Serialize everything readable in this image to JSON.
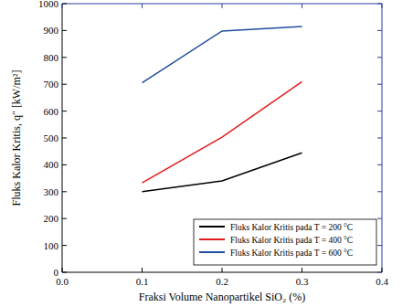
{
  "chart_data": {
    "type": "line",
    "x_label": "Fraksi Volume Nanopartikel SiO₂ (%)",
    "y_label": "Fluks Kalor Kritis, q″ [kW/m²]",
    "x": [
      0.1,
      0.2,
      0.3
    ],
    "series": [
      {
        "name": "Fluks Kalor Kritis pada T = 200 °C",
        "color": "#000000",
        "values": [
          300,
          340,
          445
        ]
      },
      {
        "name": "Fluks Kalor Kritis pada T = 400 °C",
        "color": "#e31a1c",
        "values": [
          333,
          503,
          710
        ]
      },
      {
        "name": "Fluks Kalor Kritis pada T = 600 °C",
        "color": "#1f4e9e",
        "values": [
          705,
          898,
          915
        ]
      }
    ],
    "xlim": [
      0.0,
      0.4
    ],
    "xticks": [
      {
        "value": 0,
        "label": "0.0"
      },
      0.1,
      0.2,
      0.3,
      0.4
    ],
    "ylim": [
      0,
      1000
    ],
    "yticks": [
      0,
      100,
      200,
      300,
      400,
      500,
      600,
      700,
      800,
      900,
      1000
    ],
    "legend": "lower right",
    "grid": false
  }
}
